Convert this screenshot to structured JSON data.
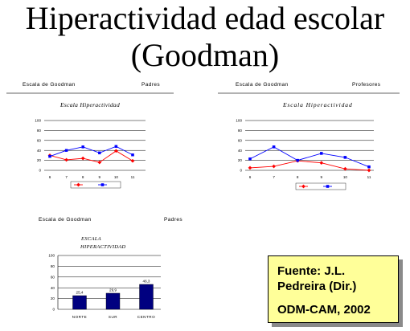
{
  "slide": {
    "title_line1": "Hiperactividad edad escolar",
    "title_line2": "(Goodman)"
  },
  "panels": [
    {
      "scale": "Escala de Goodman",
      "informant": "Padres"
    },
    {
      "scale": "Escala de Goodman",
      "informant": "Profesores"
    },
    {
      "scale": "Escala de Goodman",
      "informant": "Padres"
    }
  ],
  "chart_data": [
    {
      "type": "line",
      "title": "Escala Hiperactividad",
      "categories": [
        "6",
        "7",
        "8",
        "9",
        "10",
        "11"
      ],
      "series": [
        {
          "values": [
            30,
            21,
            24,
            16,
            39,
            19
          ],
          "color": "#ff0000",
          "marker": "diamond"
        },
        {
          "values": [
            28,
            40,
            47,
            35,
            48,
            31
          ],
          "color": "#0000ff",
          "marker": "square"
        }
      ],
      "ylim": [
        0,
        100
      ],
      "yticks": [
        "100",
        "80",
        "60",
        "40",
        "20",
        "0"
      ],
      "grid": true,
      "legend": "bottom"
    },
    {
      "type": "line",
      "title": "Escala Hiperactividad",
      "categories": [
        "6",
        "7",
        "8",
        "9",
        "10",
        "11"
      ],
      "series": [
        {
          "values": [
            5,
            8,
            19,
            15,
            3,
            0
          ],
          "color": "#ff0000",
          "marker": "diamond"
        },
        {
          "values": [
            23,
            47,
            20,
            34,
            26,
            7
          ],
          "color": "#0000ff",
          "marker": "square"
        }
      ],
      "ylim": [
        0,
        100
      ],
      "yticks": [
        "100",
        "80",
        "60",
        "40",
        "20",
        "0"
      ],
      "grid": true,
      "legend": "bottom"
    },
    {
      "type": "bar",
      "title_lines": [
        "ESCALA",
        "HIPERACTIVIDAD"
      ],
      "categories": [
        "NORTE",
        "SUR",
        "CENTRO"
      ],
      "values": [
        25.4,
        29.9,
        46.3
      ],
      "data_labels": [
        "25,4",
        "29,9",
        "46,3"
      ],
      "ylim": [
        0,
        100
      ],
      "yticks": [
        "100",
        "80",
        "60",
        "40",
        "20",
        "0"
      ],
      "grid": true,
      "bar_color": "#000080"
    }
  ],
  "source_box": {
    "line1": "Fuente: J.L.",
    "line2": "Pedreira (Dir.)",
    "line3": "ODM-CAM, 2002",
    "background": "#ffff99"
  }
}
